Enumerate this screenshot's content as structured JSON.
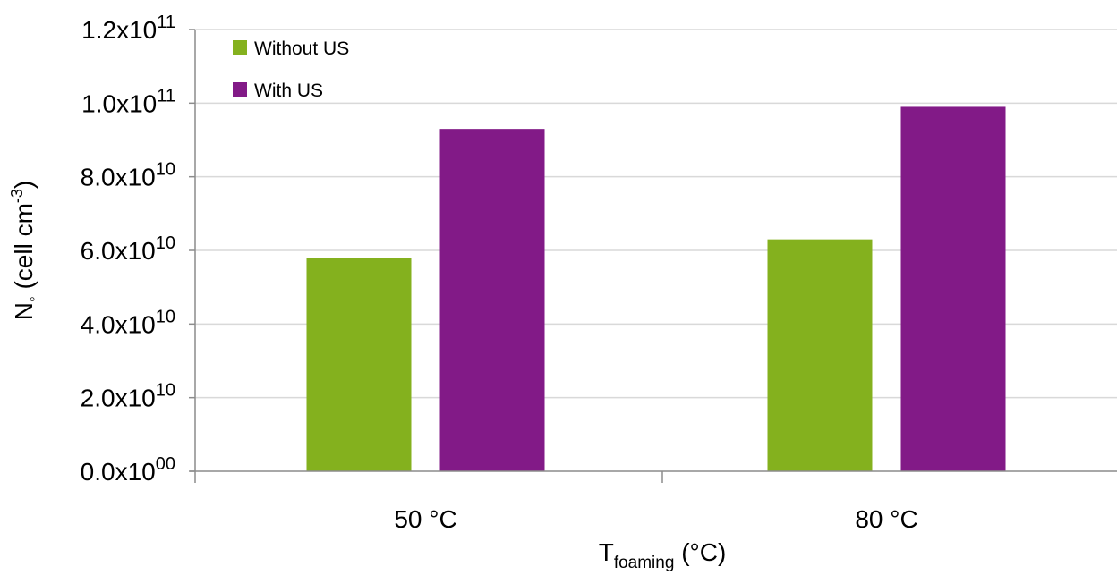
{
  "chart_data": {
    "type": "bar",
    "categories": [
      "50 °C",
      "80 °C"
    ],
    "series": [
      {
        "name": "Without US",
        "color": "#84B11E",
        "values": [
          58000000000.0,
          63000000000.0
        ]
      },
      {
        "name": "With US",
        "color": "#821A87",
        "values": [
          93000000000.0,
          99000000000.0
        ]
      }
    ],
    "ylim": [
      0,
      120000000000.0
    ],
    "yticks": [
      {
        "value": 0,
        "mantissa": "0.0x10",
        "exp": "00"
      },
      {
        "value": 20000000000.0,
        "mantissa": "2.0x10",
        "exp": "10"
      },
      {
        "value": 40000000000.0,
        "mantissa": "4.0x10",
        "exp": "10"
      },
      {
        "value": 60000000000.0,
        "mantissa": "6.0x10",
        "exp": "10"
      },
      {
        "value": 80000000000.0,
        "mantissa": "8.0x10",
        "exp": "10"
      },
      {
        "value": 100000000000.0,
        "mantissa": "1.0x10",
        "exp": "11"
      },
      {
        "value": 120000000000.0,
        "mantissa": "1.2x10",
        "exp": "11"
      }
    ],
    "xlabel": {
      "main": "T",
      "sub": "foaming",
      "rest": " (°C)"
    },
    "ylabel": {
      "main": "N",
      "sub": "◦",
      "rest": " (cell cm",
      "sup": "-3",
      "close": ")"
    },
    "grid": true,
    "legend_position": "top-left"
  }
}
